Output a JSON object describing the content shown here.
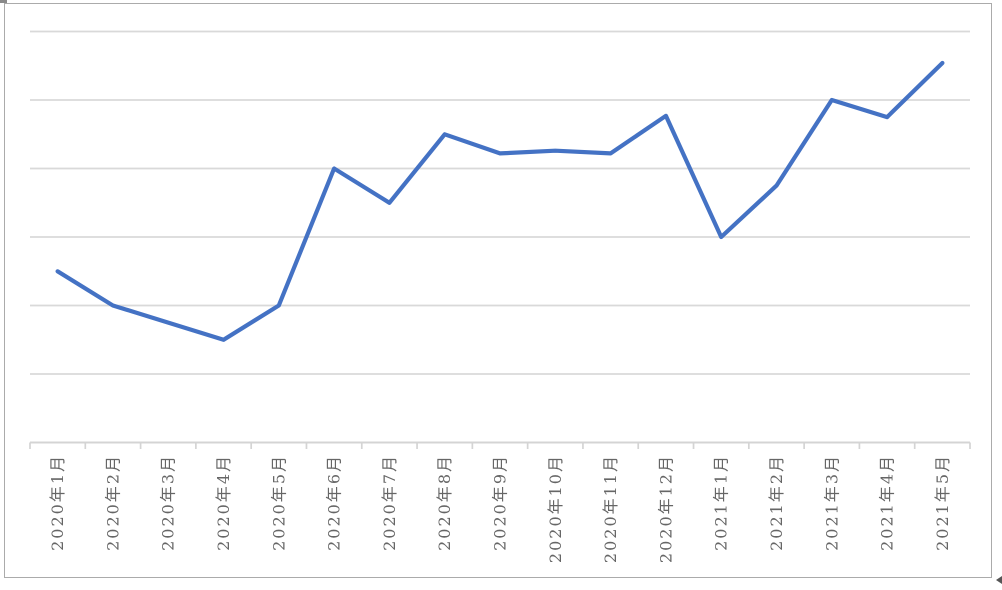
{
  "chart_data": {
    "type": "line",
    "categories": [
      "2020年1月",
      "2020年2月",
      "2020年3月",
      "2020年4月",
      "2020年5月",
      "2020年6月",
      "2020年7月",
      "2020年8月",
      "2020年9月",
      "2020年10月",
      "2020年11月",
      "2020年12月",
      "2021年1月",
      "2021年2月",
      "2021年3月",
      "2021年4月",
      "2021年5月"
    ],
    "values": [
      2.5,
      2.0,
      1.75,
      1.5,
      2.0,
      4.0,
      3.5,
      4.5,
      4.22,
      4.26,
      4.22,
      4.77,
      3.0,
      3.75,
      5.0,
      4.75,
      5.54
    ],
    "value_unit_note": "gridline units; y-axis has no visible tick labels, 6 equal divisions between axis and top gridline",
    "title": "",
    "xlabel": "",
    "ylabel": "",
    "ylim": [
      0,
      6
    ],
    "y_gridline_step": 1,
    "y_axis_labels_visible": false,
    "grid": "horizontal",
    "legend": "none",
    "x_tick_label_rotation_deg": -90,
    "x_tick_marks": "outside, at category boundaries"
  },
  "colors": {
    "line": "#4472C4",
    "gridline": "#D9D9D9",
    "axis": "#D4D4D4",
    "tick": "#D4D4D4",
    "tick_label": "#666666",
    "frame_border": "#ABABAB",
    "background": "#FFFFFF",
    "corner_artifact": "#8A8A8A",
    "cursor_artifact": "#555555"
  },
  "icons": {
    "cursor_artifact": "small left-pointing arrowhead at bottom-right outside frame",
    "corner_artifact": "dark gray sliver fragment at top-left corner"
  }
}
